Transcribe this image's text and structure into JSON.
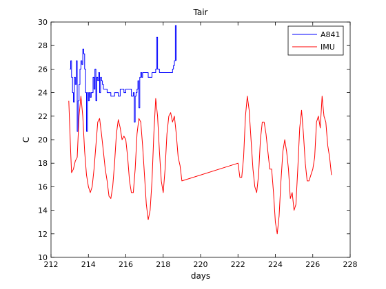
{
  "chart_data": {
    "type": "line",
    "title": "Tair",
    "xlabel": "days",
    "ylabel": "C",
    "xlim": [
      212,
      228
    ],
    "ylim": [
      10,
      30
    ],
    "xticks": [
      212,
      214,
      216,
      218,
      220,
      222,
      224,
      226,
      228
    ],
    "yticks": [
      10,
      12,
      14,
      16,
      18,
      20,
      22,
      24,
      26,
      28,
      30
    ],
    "grid": false,
    "legend_position": "top-right",
    "series": [
      {
        "name": "A841",
        "color": "#0000ff",
        "step": true,
        "x": [
          213.0,
          213.05,
          213.1,
          213.15,
          213.2,
          213.25,
          213.3,
          213.35,
          213.4,
          213.45,
          213.5,
          213.55,
          213.6,
          213.65,
          213.7,
          213.75,
          213.8,
          213.85,
          213.9,
          213.95,
          214.0,
          214.05,
          214.1,
          214.15,
          214.2,
          214.25,
          214.3,
          214.35,
          214.4,
          214.45,
          214.5,
          214.55,
          214.6,
          214.65,
          214.7,
          214.75,
          214.8,
          214.9,
          215.0,
          215.2,
          215.3,
          215.4,
          215.5,
          215.6,
          215.7,
          215.8,
          215.9,
          216.0,
          216.2,
          216.3,
          216.4,
          216.45,
          216.5,
          216.55,
          216.6,
          216.65,
          216.7,
          216.75,
          216.8,
          216.85,
          216.9,
          217.0,
          217.2,
          217.3,
          217.4,
          217.5,
          217.6,
          217.65,
          217.7,
          217.8,
          217.9,
          218.0,
          218.2,
          218.4,
          218.5,
          218.55,
          218.6,
          218.65,
          218.7
        ],
        "y": [
          26.0,
          26.7,
          25.3,
          24.0,
          23.2,
          25.3,
          24.7,
          26.7,
          20.7,
          23.3,
          24.7,
          26.0,
          26.7,
          26.4,
          27.7,
          27.3,
          26.0,
          24.0,
          20.7,
          24.0,
          23.3,
          24.0,
          23.6,
          24.0,
          24.0,
          25.3,
          24.3,
          26.0,
          23.3,
          25.3,
          25.0,
          25.7,
          24.0,
          25.3,
          25.0,
          24.7,
          24.3,
          24.3,
          24.0,
          23.7,
          23.7,
          24.0,
          24.0,
          23.7,
          24.3,
          24.3,
          24.0,
          24.3,
          24.3,
          23.7,
          24.0,
          21.5,
          23.7,
          24.0,
          24.3,
          25.0,
          22.7,
          25.3,
          25.7,
          25.3,
          25.7,
          25.7,
          25.3,
          25.3,
          25.7,
          25.7,
          26.0,
          28.7,
          26.0,
          25.7,
          25.7,
          25.7,
          25.7,
          25.7,
          26.0,
          26.3,
          26.7,
          29.7,
          26.7
        ]
      },
      {
        "name": "IMU",
        "color": "#ff0000",
        "step": false,
        "x": [
          212.95,
          213.05,
          213.1,
          213.2,
          213.3,
          213.4,
          213.5,
          213.6,
          213.7,
          213.8,
          213.9,
          214.0,
          214.1,
          214.2,
          214.3,
          214.4,
          214.5,
          214.6,
          214.7,
          214.8,
          214.9,
          215.0,
          215.1,
          215.2,
          215.3,
          215.4,
          215.5,
          215.6,
          215.7,
          215.8,
          215.9,
          216.0,
          216.1,
          216.2,
          216.3,
          216.4,
          216.5,
          216.6,
          216.7,
          216.8,
          216.9,
          217.0,
          217.1,
          217.2,
          217.3,
          217.4,
          217.5,
          217.6,
          217.7,
          217.8,
          217.9,
          218.0,
          218.1,
          218.2,
          218.3,
          218.4,
          218.5,
          218.6,
          218.7,
          218.8,
          218.9,
          219.0,
          222.0,
          222.1,
          222.2,
          222.3,
          222.4,
          222.5,
          222.6,
          222.7,
          222.8,
          222.9,
          223.0,
          223.1,
          223.2,
          223.3,
          223.4,
          223.5,
          223.6,
          223.7,
          223.8,
          223.9,
          224.0,
          224.1,
          224.2,
          224.3,
          224.4,
          224.5,
          224.6,
          224.7,
          224.8,
          224.9,
          225.0,
          225.1,
          225.2,
          225.3,
          225.4,
          225.5,
          225.6,
          225.7,
          225.8,
          225.9,
          226.0,
          226.1,
          226.2,
          226.3,
          226.4,
          226.5,
          226.6,
          226.7,
          226.8,
          226.9,
          227.0
        ],
        "y": [
          23.3,
          19.0,
          17.2,
          17.5,
          18.2,
          18.5,
          22.0,
          23.7,
          22.0,
          19.0,
          17.0,
          16.0,
          15.5,
          16.0,
          17.5,
          19.5,
          21.5,
          21.8,
          20.5,
          19.0,
          17.5,
          16.5,
          15.2,
          15.0,
          16.0,
          18.0,
          20.5,
          21.7,
          21.0,
          20.0,
          20.3,
          20.0,
          18.5,
          16.5,
          15.5,
          15.5,
          17.5,
          20.5,
          21.8,
          21.5,
          19.5,
          17.0,
          14.5,
          13.2,
          14.0,
          16.5,
          20.5,
          23.5,
          22.0,
          19.0,
          16.5,
          15.5,
          17.5,
          20.5,
          22.0,
          22.3,
          21.5,
          22.0,
          20.5,
          18.5,
          17.8,
          16.5,
          18.0,
          16.8,
          16.8,
          18.5,
          22.0,
          23.7,
          22.5,
          20.0,
          17.5,
          16.0,
          15.5,
          17.0,
          20.0,
          21.5,
          21.5,
          20.5,
          19.0,
          17.5,
          17.5,
          15.5,
          13.0,
          12.0,
          13.5,
          16.5,
          19.0,
          20.0,
          19.0,
          17.5,
          15.0,
          15.5,
          14.0,
          14.5,
          17.5,
          21.0,
          22.5,
          20.5,
          18.0,
          16.5,
          16.5,
          17.0,
          17.5,
          18.5,
          21.5,
          22.0,
          21.0,
          23.7,
          22.0,
          21.5,
          19.5,
          18.5,
          17.0
        ]
      }
    ]
  }
}
